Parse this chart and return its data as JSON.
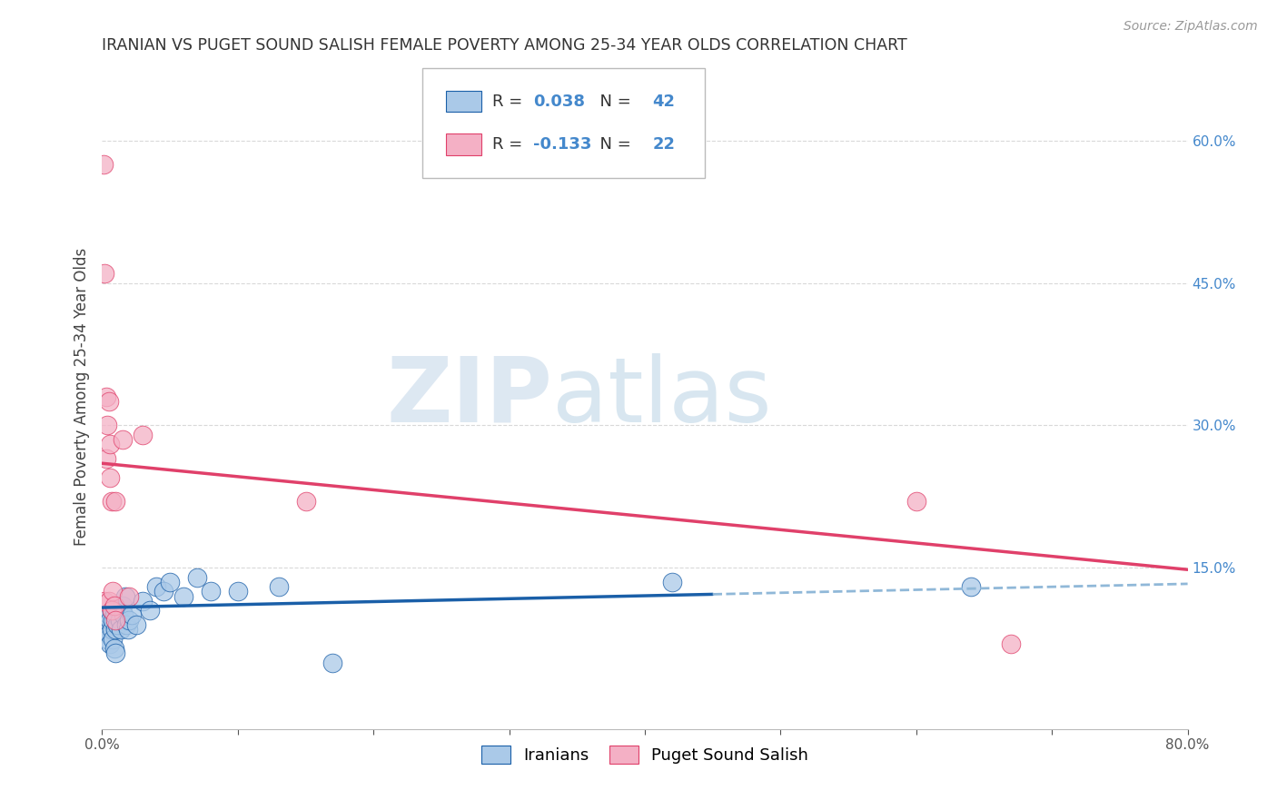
{
  "title": "IRANIAN VS PUGET SOUND SALISH FEMALE POVERTY AMONG 25-34 YEAR OLDS CORRELATION CHART",
  "source": "Source: ZipAtlas.com",
  "ylabel": "Female Poverty Among 25-34 Year Olds",
  "legend_iranians": "Iranians",
  "legend_salish": "Puget Sound Salish",
  "R_iranians": "0.038",
  "N_iranians": "42",
  "R_salish": "-0.133",
  "N_salish": "22",
  "xlim": [
    0.0,
    0.8
  ],
  "ylim": [
    -0.02,
    0.68
  ],
  "xticks": [
    0.0,
    0.1,
    0.2,
    0.3,
    0.4,
    0.5,
    0.6,
    0.7,
    0.8
  ],
  "xtick_labels": [
    "0.0%",
    "",
    "",
    "",
    "",
    "",
    "",
    "",
    "80.0%"
  ],
  "yticks_right": [
    0.15,
    0.3,
    0.45,
    0.6
  ],
  "ytick_labels_right": [
    "15.0%",
    "30.0%",
    "45.0%",
    "60.0%"
  ],
  "color_iranians": "#aac9e8",
  "color_salish": "#f4b0c5",
  "color_trend_iranians": "#1a5fa8",
  "color_trend_salish": "#e0406a",
  "color_trend_dashed": "#90b8d8",
  "iranians_x": [
    0.002,
    0.003,
    0.003,
    0.004,
    0.004,
    0.005,
    0.005,
    0.006,
    0.006,
    0.007,
    0.007,
    0.008,
    0.008,
    0.009,
    0.009,
    0.01,
    0.01,
    0.011,
    0.012,
    0.013,
    0.014,
    0.015,
    0.016,
    0.017,
    0.018,
    0.019,
    0.02,
    0.022,
    0.025,
    0.03,
    0.035,
    0.04,
    0.045,
    0.05,
    0.06,
    0.07,
    0.08,
    0.1,
    0.13,
    0.17,
    0.42,
    0.64
  ],
  "iranians_y": [
    0.095,
    0.085,
    0.08,
    0.09,
    0.075,
    0.1,
    0.08,
    0.095,
    0.07,
    0.105,
    0.085,
    0.095,
    0.075,
    0.1,
    0.065,
    0.085,
    0.06,
    0.09,
    0.105,
    0.095,
    0.085,
    0.11,
    0.1,
    0.12,
    0.09,
    0.085,
    0.095,
    0.1,
    0.09,
    0.115,
    0.105,
    0.13,
    0.125,
    0.135,
    0.12,
    0.14,
    0.125,
    0.125,
    0.13,
    0.05,
    0.135,
    0.13
  ],
  "salish_x": [
    0.001,
    0.002,
    0.002,
    0.003,
    0.003,
    0.004,
    0.005,
    0.005,
    0.006,
    0.006,
    0.007,
    0.007,
    0.008,
    0.009,
    0.01,
    0.01,
    0.015,
    0.02,
    0.03,
    0.15,
    0.6,
    0.67
  ],
  "salish_y": [
    0.575,
    0.46,
    0.115,
    0.33,
    0.265,
    0.3,
    0.325,
    0.115,
    0.28,
    0.245,
    0.22,
    0.105,
    0.125,
    0.11,
    0.095,
    0.22,
    0.285,
    0.12,
    0.29,
    0.22,
    0.22,
    0.07
  ],
  "trend_iran_x0": 0.0,
  "trend_iran_y0": 0.108,
  "trend_iran_x1": 0.45,
  "trend_iran_y1": 0.122,
  "trend_iran_dash_x0": 0.45,
  "trend_iran_dash_y0": 0.122,
  "trend_iran_dash_x1": 0.8,
  "trend_iran_dash_y1": 0.133,
  "trend_salish_x0": 0.0,
  "trend_salish_y0": 0.26,
  "trend_salish_x1": 0.8,
  "trend_salish_y1": 0.148,
  "watermark_zip": "ZIP",
  "watermark_atlas": "atlas",
  "background_color": "#ffffff",
  "grid_color": "#d0d0d0"
}
